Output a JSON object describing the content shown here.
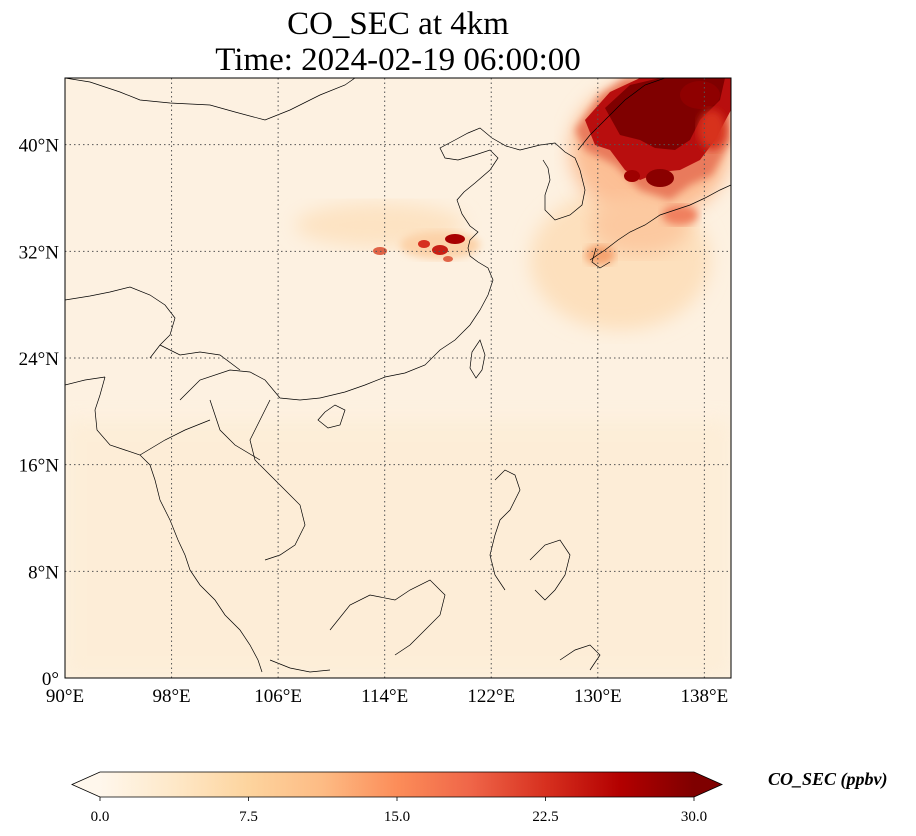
{
  "title": {
    "line1": "CO_SEC at 4km",
    "line2": "Time: 2024-02-19 06:00:00"
  },
  "map": {
    "extent": {
      "lon": [
        90,
        140
      ],
      "lat": [
        0,
        45
      ]
    },
    "lon_ticks": [
      {
        "value": 90,
        "label": "90°E"
      },
      {
        "value": 98,
        "label": "98°E"
      },
      {
        "value": 106,
        "label": "106°E"
      },
      {
        "value": 114,
        "label": "114°E"
      },
      {
        "value": 122,
        "label": "122°E"
      },
      {
        "value": 130,
        "label": "130°E"
      },
      {
        "value": 138,
        "label": "138°E"
      }
    ],
    "lat_ticks": [
      {
        "value": 0,
        "label": "0°"
      },
      {
        "value": 8,
        "label": "8°N"
      },
      {
        "value": 16,
        "label": "16°N"
      },
      {
        "value": 24,
        "label": "24°N"
      },
      {
        "value": 32,
        "label": "32°N"
      },
      {
        "value": 40,
        "label": "40°N"
      }
    ],
    "grid": "dotted"
  },
  "colorbar": {
    "label": "CO_SEC (ppbv)",
    "min": 0,
    "max": 30,
    "extend": "both",
    "colormap": "OrRd",
    "ticks": [
      {
        "value": 0,
        "label": "0.0"
      },
      {
        "value": 7.5,
        "label": "7.5"
      },
      {
        "value": 15,
        "label": "15.0"
      },
      {
        "value": 22.5,
        "label": "22.5"
      },
      {
        "value": 30,
        "label": "30.0"
      }
    ],
    "stops": [
      "#fff7ec",
      "#fee8c8",
      "#fdd49e",
      "#fdbb84",
      "#fc8d59",
      "#ef6548",
      "#d7301f",
      "#b30000",
      "#7f0000"
    ]
  }
}
